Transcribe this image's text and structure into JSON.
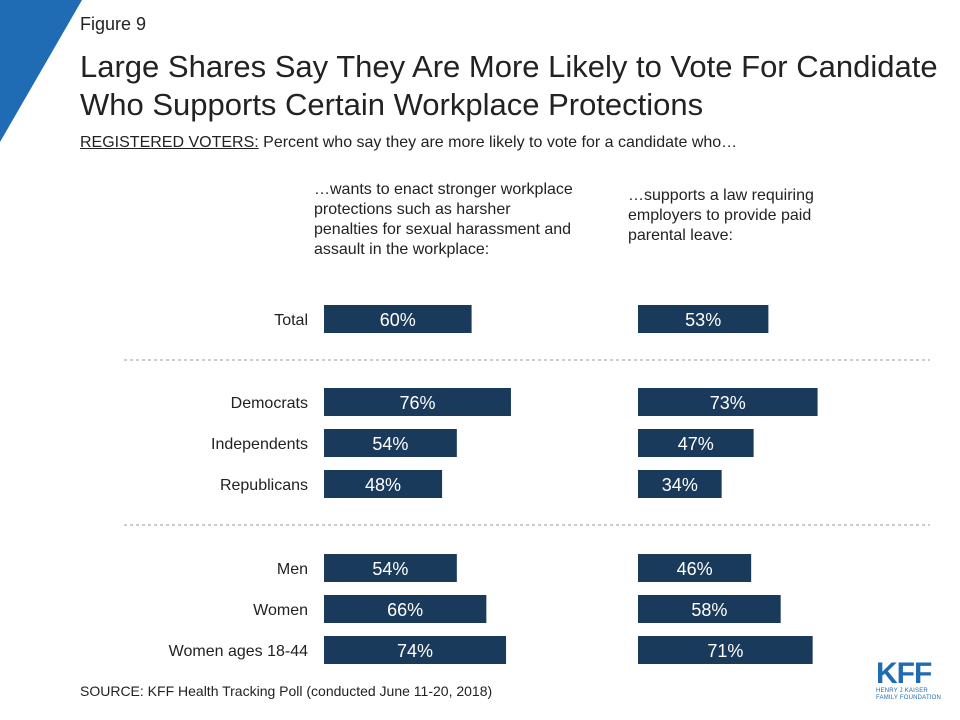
{
  "figure_label": "Figure 9",
  "title": "Large Shares Say They Are More Likely to Vote For Candidate Who Supports Certain Workplace Protections",
  "subtitle_prefix": "REGISTERED VOTERS:",
  "subtitle_rest": " Percent who say they are more likely to vote for a candidate who…",
  "source": "SOURCE: KFF Health Tracking Poll (conducted June 11-20, 2018)",
  "logo": {
    "main": "KFF",
    "sub": "HENRY J KAISER FAMILY FOUNDATION"
  },
  "colors": {
    "bar": "#1a3a5c",
    "accent": "#1f6bb4",
    "text": "#222222",
    "divider": "#999999"
  },
  "chart_data": {
    "type": "bar",
    "orientation": "horizontal",
    "categories": [
      "Total",
      "Democrats",
      "Independents",
      "Republicans",
      "Men",
      "Women",
      "Women ages 18-44"
    ],
    "groups": [
      [
        "Total"
      ],
      [
        "Democrats",
        "Independents",
        "Republicans"
      ],
      [
        "Men",
        "Women",
        "Women ages 18-44"
      ]
    ],
    "series": [
      {
        "name": "…wants to enact stronger workplace protections such as harsher penalties for sexual harassment and assault in the workplace:",
        "values": [
          60,
          76,
          54,
          48,
          54,
          66,
          74
        ],
        "labels": [
          "60%",
          "76%",
          "54%",
          "48%",
          "54%",
          "66%",
          "74%"
        ]
      },
      {
        "name": "…supports a law requiring employers to provide paid parental leave:",
        "values": [
          53,
          73,
          47,
          34,
          46,
          58,
          71
        ],
        "labels": [
          "53%",
          "73%",
          "47%",
          "34%",
          "46%",
          "58%",
          "71%"
        ]
      }
    ],
    "xlim": [
      0,
      100
    ],
    "grid": false,
    "data_labels": "inside"
  }
}
